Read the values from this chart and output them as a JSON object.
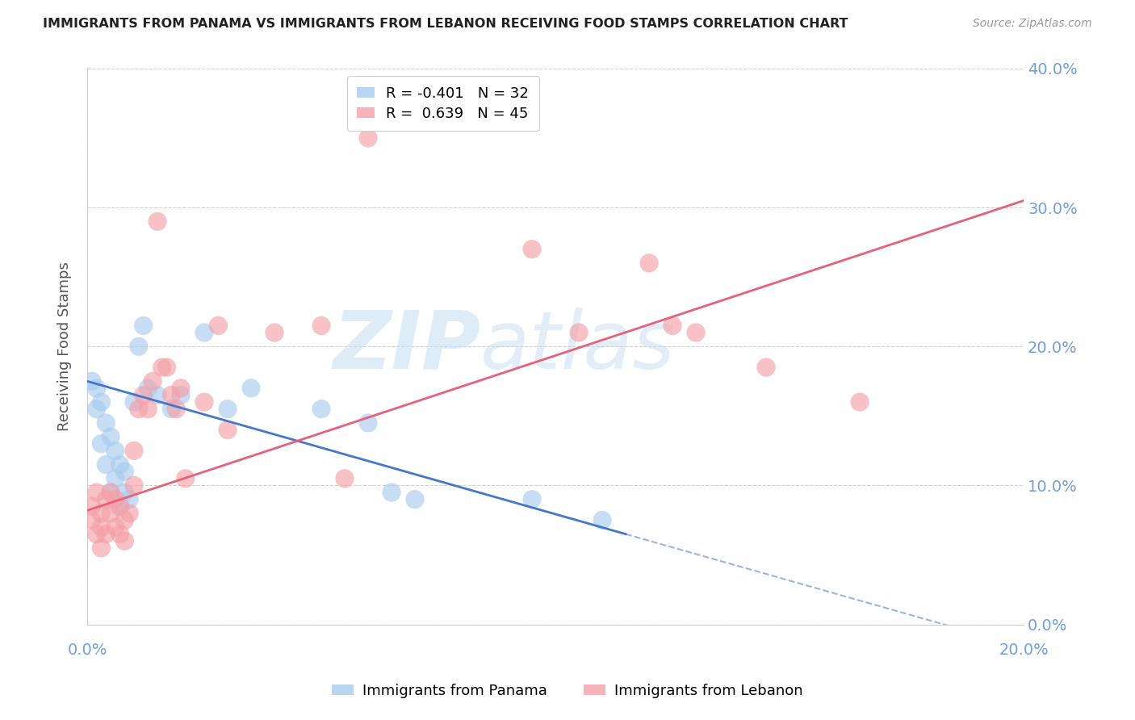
{
  "title": "IMMIGRANTS FROM PANAMA VS IMMIGRANTS FROM LEBANON RECEIVING FOOD STAMPS CORRELATION CHART",
  "source": "Source: ZipAtlas.com",
  "ylabel": "Receiving Food Stamps",
  "legend_panama": "Immigrants from Panama",
  "legend_lebanon": "Immigrants from Lebanon",
  "R_panama": -0.401,
  "N_panama": 32,
  "R_lebanon": 0.639,
  "N_lebanon": 45,
  "xlim": [
    0.0,
    0.2
  ],
  "ylim": [
    0.0,
    0.4
  ],
  "yticks": [
    0.0,
    0.1,
    0.2,
    0.3,
    0.4
  ],
  "xticks": [
    0.0,
    0.2
  ],
  "watermark_zip": "ZIP",
  "watermark_atlas": "atlas",
  "color_panama": "#A8CCEE",
  "color_lebanon": "#F4A0A8",
  "color_trend_panama": "#4477CC",
  "color_trend_lebanon": "#E8607A",
  "color_axis_labels": "#6FA0DC",
  "panama_x": [
    0.001,
    0.002,
    0.002,
    0.003,
    0.003,
    0.004,
    0.004,
    0.005,
    0.005,
    0.006,
    0.006,
    0.007,
    0.007,
    0.008,
    0.008,
    0.009,
    0.01,
    0.011,
    0.012,
    0.013,
    0.015,
    0.018,
    0.02,
    0.025,
    0.03,
    0.035,
    0.05,
    0.06,
    0.065,
    0.07,
    0.095,
    0.11
  ],
  "panama_y": [
    0.175,
    0.155,
    0.17,
    0.16,
    0.13,
    0.145,
    0.115,
    0.135,
    0.095,
    0.125,
    0.105,
    0.115,
    0.085,
    0.095,
    0.11,
    0.09,
    0.16,
    0.2,
    0.215,
    0.17,
    0.165,
    0.155,
    0.165,
    0.21,
    0.155,
    0.17,
    0.155,
    0.145,
    0.095,
    0.09,
    0.09,
    0.075
  ],
  "lebanon_x": [
    0.001,
    0.001,
    0.002,
    0.002,
    0.003,
    0.003,
    0.003,
    0.004,
    0.004,
    0.005,
    0.005,
    0.006,
    0.006,
    0.007,
    0.007,
    0.008,
    0.008,
    0.009,
    0.01,
    0.01,
    0.011,
    0.012,
    0.013,
    0.014,
    0.015,
    0.016,
    0.017,
    0.018,
    0.019,
    0.02,
    0.021,
    0.025,
    0.028,
    0.03,
    0.04,
    0.05,
    0.055,
    0.06,
    0.095,
    0.105,
    0.12,
    0.125,
    0.13,
    0.145,
    0.165
  ],
  "lebanon_y": [
    0.075,
    0.085,
    0.065,
    0.095,
    0.07,
    0.08,
    0.055,
    0.09,
    0.065,
    0.08,
    0.095,
    0.07,
    0.09,
    0.065,
    0.085,
    0.06,
    0.075,
    0.08,
    0.125,
    0.1,
    0.155,
    0.165,
    0.155,
    0.175,
    0.29,
    0.185,
    0.185,
    0.165,
    0.155,
    0.17,
    0.105,
    0.16,
    0.215,
    0.14,
    0.21,
    0.215,
    0.105,
    0.35,
    0.27,
    0.21,
    0.26,
    0.215,
    0.21,
    0.185,
    0.16
  ],
  "panama_trend_x0": 0.0,
  "panama_trend_y0": 0.175,
  "panama_trend_x1": 0.115,
  "panama_trend_y1": 0.065,
  "lebanon_trend_x0": 0.0,
  "lebanon_trend_y0": 0.082,
  "lebanon_trend_x1": 0.2,
  "lebanon_trend_y1": 0.305
}
